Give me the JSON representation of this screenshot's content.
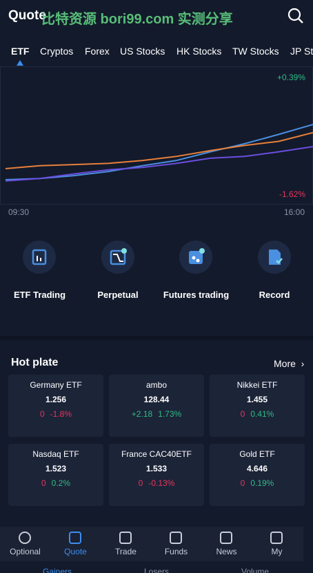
{
  "header": {
    "title": "Quote",
    "watermark": "比特资源 bori99.com 实测分享"
  },
  "tabs": [
    "ETF",
    "Cryptos",
    "Forex",
    "US Stocks",
    "HK Stocks",
    "TW Stocks",
    "JP Stocks"
  ],
  "chart": {
    "ylim": [
      {
        "value": -1.62,
        "label": "-1.62%"
      },
      {
        "value": 0.39,
        "label": "+0.39%"
      }
    ],
    "x_start": "09:30",
    "x_end": "16:00",
    "series": [
      {
        "color": "#4a8fe0",
        "values": [
          -1.37,
          -1.35,
          -1.3,
          -1.23,
          -1.13,
          -1.04,
          -0.89,
          -0.75,
          -0.59,
          -0.42
        ]
      },
      {
        "color": "#e8803a",
        "values": [
          -1.18,
          -1.13,
          -1.11,
          -1.09,
          -1.04,
          -0.97,
          -0.87,
          -0.78,
          -0.71,
          -0.56
        ]
      },
      {
        "color": "#6a4fe0",
        "values": [
          -1.39,
          -1.35,
          -1.27,
          -1.2,
          -1.16,
          -1.09,
          -1.0,
          -0.97,
          -0.89,
          -0.8
        ]
      }
    ]
  },
  "menu": [
    "ETF Trading",
    "Perpetual",
    "Futures trading",
    "Record"
  ],
  "hot_plate": {
    "title": "Hot plate",
    "more": "More",
    "cards": [
      {
        "name": "Germany ETF",
        "price": "1.256",
        "change": "0",
        "percent": "-1.8%",
        "change_color": "#e8365d",
        "percent_color": "#e8365d"
      },
      {
        "name": "ambo",
        "price": "128.44",
        "change": "+2.18",
        "percent": "1.73%",
        "change_color": "#2ebd85",
        "percent_color": "#2ebd85"
      },
      {
        "name": "Nikkei ETF",
        "price": "1.455",
        "change": "0",
        "percent": "0.41%",
        "change_color": "#e8365d",
        "percent_color": "#2ebd85"
      },
      {
        "name": "Nasdaq ETF",
        "price": "1.523",
        "change": "0",
        "percent": "0.2%",
        "change_color": "#e8365d",
        "percent_color": "#2ebd85"
      },
      {
        "name": "France CAC40ETF",
        "price": "1.533",
        "change": "0",
        "percent": "-0.13%",
        "change_color": "#e8365d",
        "percent_color": "#e8365d"
      },
      {
        "name": "Gold ETF",
        "price": "4.646",
        "change": "0",
        "percent": "0.19%",
        "change_color": "#e8365d",
        "percent_color": "#2ebd85"
      }
    ]
  },
  "ranking_tabs": [
    "Gainers",
    "Losers",
    "Volume"
  ],
  "nav": [
    "Optional",
    "Quote",
    "Trade",
    "Funds",
    "News",
    "My"
  ]
}
